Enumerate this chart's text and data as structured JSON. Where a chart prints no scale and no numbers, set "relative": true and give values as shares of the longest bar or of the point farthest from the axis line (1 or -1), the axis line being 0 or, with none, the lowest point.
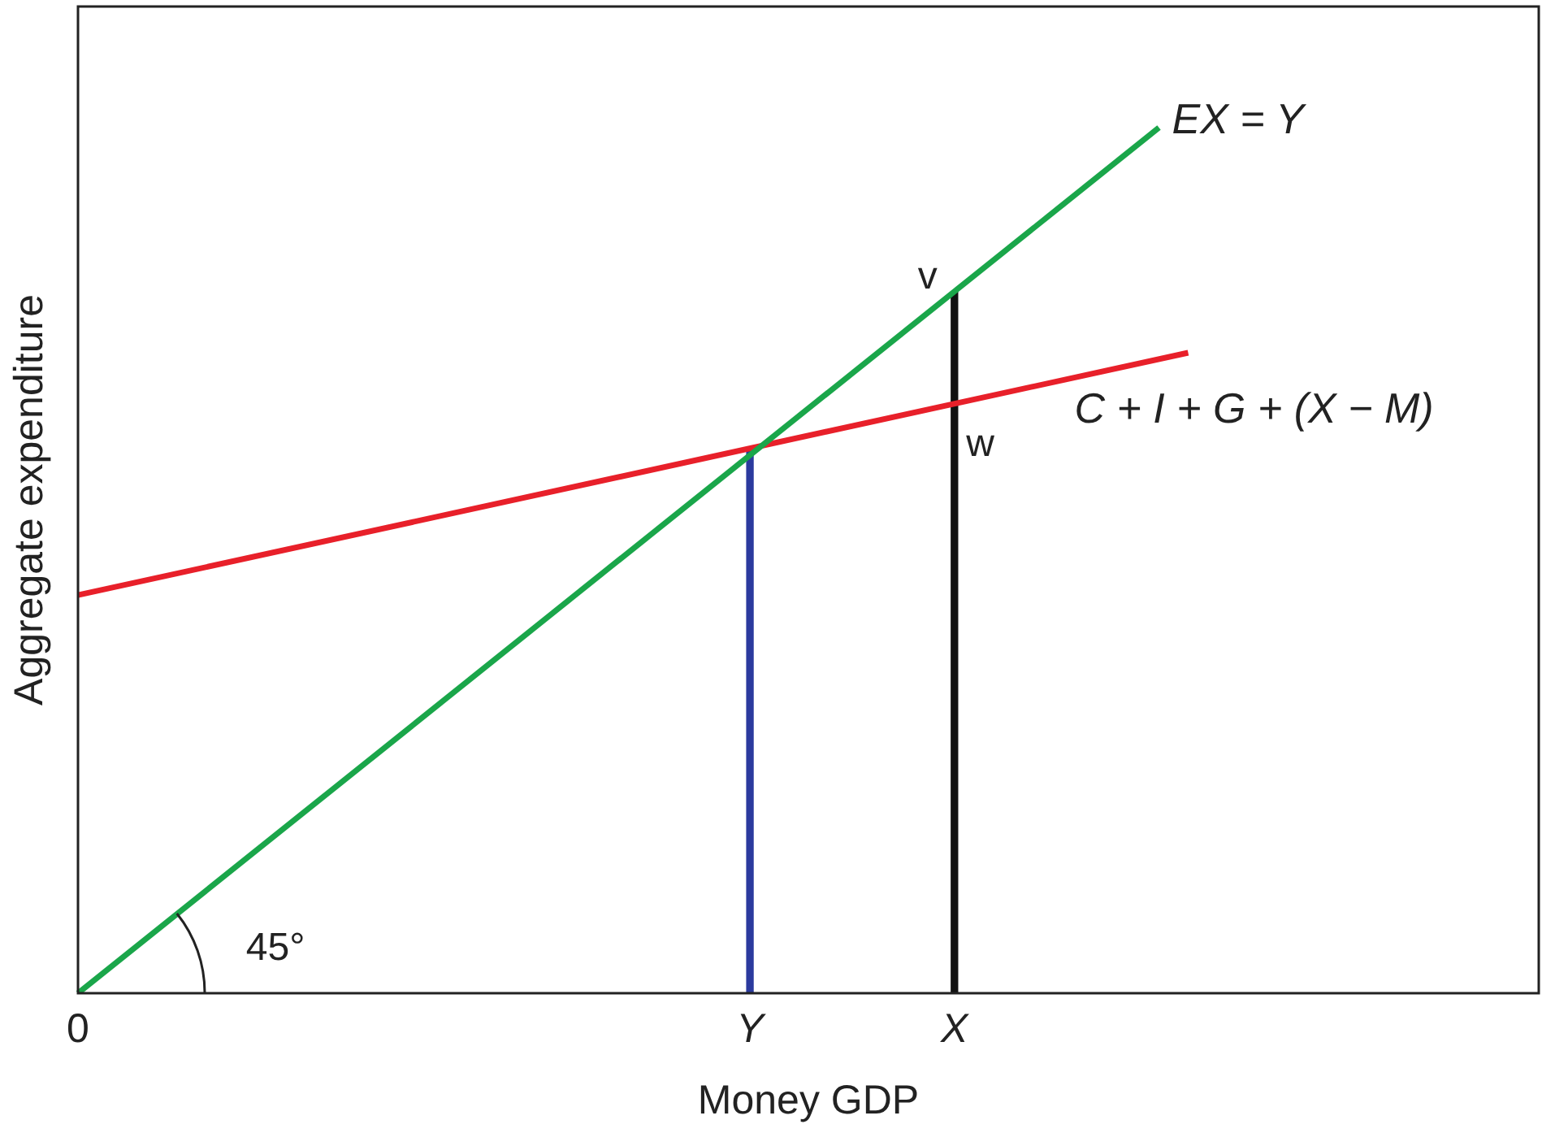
{
  "chart_data": {
    "type": "line",
    "relative": true,
    "xlabel": "Money GDP",
    "ylabel": "Aggregate expenditure",
    "categories": [
      "0",
      null,
      null,
      null,
      null,
      null,
      null,
      null,
      null,
      null,
      null,
      null,
      null,
      null,
      null,
      null,
      null,
      null,
      null,
      null,
      null,
      null,
      null,
      "Y",
      null,
      null,
      null,
      null,
      null,
      null,
      "X",
      null,
      null,
      null,
      null,
      null,
      null,
      null,
      null,
      null,
      null,
      null,
      null,
      null,
      null,
      null,
      null,
      null,
      null,
      null,
      null
    ],
    "series": [
      {
        "name": "EX = Y",
        "color": "#1aa64a",
        "values": [
          0,
          null,
          null,
          null,
          null,
          null,
          null,
          null,
          null,
          null,
          null,
          null,
          null,
          null,
          null,
          null,
          null,
          null,
          null,
          null,
          null,
          null,
          null,
          null,
          null,
          null,
          null,
          null,
          null,
          null,
          null,
          null,
          null,
          null,
          null,
          null,
          null,
          1,
          null,
          null,
          null,
          null,
          null,
          null,
          null,
          null,
          null,
          null,
          null,
          null,
          null
        ]
      },
      {
        "name": "C + I + G + (X − M)",
        "color": "#e8202a",
        "values": [
          0.46,
          null,
          null,
          null,
          null,
          null,
          null,
          null,
          null,
          null,
          null,
          null,
          null,
          null,
          null,
          null,
          null,
          null,
          null,
          null,
          null,
          null,
          null,
          null,
          null,
          null,
          null,
          null,
          null,
          null,
          null,
          null,
          null,
          null,
          null,
          null,
          null,
          null,
          0.74,
          null,
          null,
          null,
          null,
          null,
          null,
          null,
          null,
          null,
          null,
          null,
          null
        ]
      },
      {
        "type": "bar",
        "color": "#2b3a9e",
        "values": [
          null,
          null,
          null,
          null,
          null,
          null,
          null,
          null,
          null,
          null,
          null,
          null,
          null,
          null,
          null,
          null,
          null,
          null,
          null,
          null,
          null,
          null,
          null,
          0.63,
          null,
          null,
          null,
          null,
          null,
          null,
          null,
          null,
          null,
          null,
          null,
          null,
          null,
          null,
          null,
          null,
          null,
          null,
          null,
          null,
          null,
          null,
          null,
          null,
          null,
          null,
          null
        ]
      },
      {
        "type": "bar",
        "color": "#111111",
        "values": [
          null,
          null,
          null,
          null,
          null,
          null,
          null,
          null,
          null,
          null,
          null,
          null,
          null,
          null,
          null,
          null,
          null,
          null,
          null,
          null,
          null,
          null,
          null,
          null,
          null,
          null,
          null,
          null,
          null,
          null,
          0.81,
          null,
          null,
          null,
          null,
          null,
          null,
          null,
          null,
          null,
          null,
          null,
          null,
          null,
          null,
          null,
          null,
          null,
          null,
          null,
          null
        ]
      }
    ],
    "annotations": [
      "v",
      "w",
      "45°"
    ],
    "grid": false,
    "legend": false,
    "marker": "none",
    "line_style": "solid"
  }
}
